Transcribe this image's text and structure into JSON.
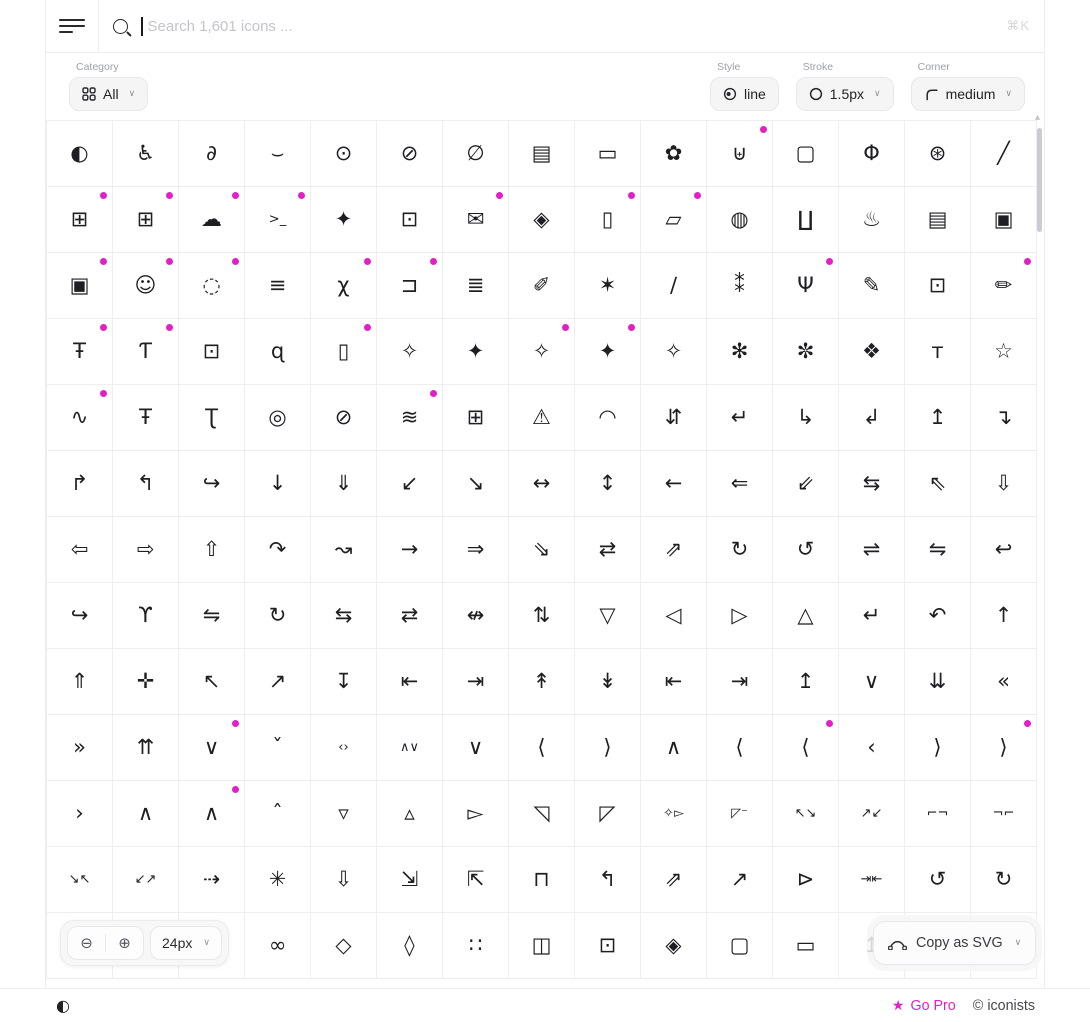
{
  "topbar": {
    "search_placeholder": "Search 1,601 icons ...",
    "shortcut_hint": "⌘K"
  },
  "filters": {
    "category_label": "Category",
    "category_value": "All",
    "style_label": "Style",
    "style_value": "line",
    "stroke_label": "Stroke",
    "stroke_value": "1.5px",
    "corner_label": "Corner",
    "corner_value": "medium"
  },
  "floating_controls": {
    "size_value": "24px",
    "copy_label": "Copy as SVG"
  },
  "footer": {
    "go_pro_label": "Go Pro",
    "copyright_symbol": "©",
    "brand": "iconists"
  },
  "icons": {
    "zoom_out": "⊖",
    "zoom_in": "⊕",
    "chevron_down": "∨",
    "theme_toggle": "◐",
    "star": "★",
    "scroll_up_arrow": "▴"
  },
  "colors": {
    "accent_magenta": "#E320C5",
    "ink": "#1F1F23"
  },
  "grid": {
    "columns": 15,
    "rows": 13,
    "cells": [
      {
        "n": "icon-contrast",
        "g": "◐"
      },
      {
        "n": "icon-accessibility",
        "g": "♿"
      },
      {
        "n": "icon-ear",
        "g": "∂"
      },
      {
        "n": "icon-eye-closed",
        "g": "⌣"
      },
      {
        "n": "icon-eye",
        "g": "⊙"
      },
      {
        "n": "icon-eye-off",
        "g": "⊘"
      },
      {
        "n": "icon-eye-off-alt",
        "g": "∅"
      },
      {
        "n": "icon-photo-card",
        "g": "▤"
      },
      {
        "n": "icon-captions",
        "g": "▭"
      },
      {
        "n": "icon-flower",
        "g": "✿"
      },
      {
        "n": "icon-bag-add",
        "g": "⊎",
        "d": 1
      },
      {
        "n": "icon-tv-sparkle",
        "g": "▢"
      },
      {
        "n": "icon-brain",
        "g": "Φ"
      },
      {
        "n": "icon-brain-sparkle",
        "g": "⊛"
      },
      {
        "n": "icon-broom-sparkle",
        "g": "╱"
      },
      {
        "n": "icon-chat-add",
        "g": "⊞",
        "d": 1
      },
      {
        "n": "icon-clipboard-add",
        "g": "⊞",
        "d": 1
      },
      {
        "n": "icon-cloud-add",
        "g": "☁",
        "d": 1
      },
      {
        "n": "icon-terminal-add",
        "g": ">_",
        "d": 1
      },
      {
        "n": "icon-cursor-sparkle",
        "g": "✦"
      },
      {
        "n": "icon-robot",
        "g": "⊡"
      },
      {
        "n": "icon-mail-add",
        "g": "✉",
        "d": 1
      },
      {
        "n": "icon-eye-shield",
        "g": "◈"
      },
      {
        "n": "icon-file-sparkle",
        "g": "▯",
        "d": 1
      },
      {
        "n": "icon-folder-sparkle",
        "g": "▱",
        "d": 1
      },
      {
        "n": "icon-crystal-ball",
        "g": "◍"
      },
      {
        "n": "icon-magic-hat",
        "g": "∐"
      },
      {
        "n": "icon-cooking-pot",
        "g": "♨"
      },
      {
        "n": "icon-id-card-sparkle",
        "g": "▤"
      },
      {
        "n": "icon-image-sparkle",
        "g": "▣"
      },
      {
        "n": "icon-image-add",
        "g": "▣",
        "d": 1
      },
      {
        "n": "icon-head-sparkle",
        "g": "☺",
        "d": 1
      },
      {
        "n": "icon-focus-sparkle",
        "g": "◌",
        "d": 1
      },
      {
        "n": "icon-list-sparkle",
        "g": "≡"
      },
      {
        "n": "icon-translate-sparkle",
        "g": "χ",
        "d": 1
      },
      {
        "n": "icon-folder-export",
        "g": "⊐",
        "d": 1
      },
      {
        "n": "icon-book-sparkle",
        "g": "≣"
      },
      {
        "n": "icon-pen-sparkle",
        "g": "✐"
      },
      {
        "n": "icon-wand-star",
        "g": "✶"
      },
      {
        "n": "icon-magic-wand",
        "g": "∕"
      },
      {
        "n": "icon-sparkler",
        "g": "⁑"
      },
      {
        "n": "icon-mic-sparkle",
        "g": "Ψ",
        "d": 1
      },
      {
        "n": "icon-brush-sparkle",
        "g": "✎"
      },
      {
        "n": "icon-sparkle-box",
        "g": "⊡"
      },
      {
        "n": "icon-pencil-sparkle",
        "g": "✏",
        "d": 1
      },
      {
        "n": "icon-text-image",
        "g": "Ŧ",
        "d": 1
      },
      {
        "n": "icon-text-video",
        "g": "Ƭ",
        "d": 1
      },
      {
        "n": "icon-robot-face",
        "g": "⊡"
      },
      {
        "n": "icon-search-sparkle",
        "g": "ɋ"
      },
      {
        "n": "icon-file-add",
        "g": "▯",
        "d": 1
      },
      {
        "n": "icon-sparkle",
        "g": "✧"
      },
      {
        "n": "icon-sparkle-solid",
        "g": "✦"
      },
      {
        "n": "icon-sparkle-alt",
        "g": "✧",
        "d": 1
      },
      {
        "n": "icon-sparkle-bold",
        "g": "✦",
        "d": 1
      },
      {
        "n": "icon-sparkle-plus",
        "g": "✧"
      },
      {
        "n": "icon-sparkles-trio",
        "g": "✻"
      },
      {
        "n": "icon-sparkles-burst",
        "g": "✼"
      },
      {
        "n": "icon-sparkles-double",
        "g": "❖"
      },
      {
        "n": "icon-voice-text",
        "g": "ᴛ"
      },
      {
        "n": "icon-star-sparkle",
        "g": "☆"
      },
      {
        "n": "icon-voice-sync",
        "g": "∿",
        "d": 1
      },
      {
        "n": "icon-text-image-sparkle",
        "g": "Ŧ"
      },
      {
        "n": "icon-text-to-speech",
        "g": "Ʈ"
      },
      {
        "n": "icon-eye-rings",
        "g": "◎"
      },
      {
        "n": "icon-globe-off",
        "g": "⊘"
      },
      {
        "n": "icon-equalizer-add",
        "g": "≋",
        "d": 1
      },
      {
        "n": "icon-window-sparkle",
        "g": "⊞"
      },
      {
        "n": "icon-warning-sparkle",
        "g": "⚠"
      },
      {
        "n": "icon-loader-sparkle",
        "g": "◠"
      },
      {
        "n": "icon-arrows-up-down",
        "g": "⇵"
      },
      {
        "n": "icon-arrow-return",
        "g": "↵"
      },
      {
        "n": "icon-arrow-branch-right",
        "g": "↳"
      },
      {
        "n": "icon-arrow-corner-down",
        "g": "↲"
      },
      {
        "n": "icon-arrow-corner-up",
        "g": "↥"
      },
      {
        "n": "icon-arrow-bend-down",
        "g": "↴"
      },
      {
        "n": "icon-arrow-turn-up",
        "g": "↱"
      },
      {
        "n": "icon-arrow-turn-left",
        "g": "↰"
      },
      {
        "n": "icon-arrow-turn-right",
        "g": "↪"
      },
      {
        "n": "icon-arrow-down",
        "g": "↓"
      },
      {
        "n": "icon-arrow-down-circle",
        "g": "⇓"
      },
      {
        "n": "icon-arrow-down-left",
        "g": "↙"
      },
      {
        "n": "icon-arrow-down-right",
        "g": "↘"
      },
      {
        "n": "icon-arrow-left-right",
        "g": "↔"
      },
      {
        "n": "icon-arrow-up-down",
        "g": "↕"
      },
      {
        "n": "icon-arrow-left",
        "g": "←"
      },
      {
        "n": "icon-arrow-left-circle",
        "g": "⇐"
      },
      {
        "n": "icon-arrow-down-left-circle",
        "g": "⇙"
      },
      {
        "n": "icon-arrows-swap",
        "g": "⇆"
      },
      {
        "n": "icon-arrow-up-left-circle",
        "g": "⇖"
      },
      {
        "n": "icon-arrow-down-outline",
        "g": "⇩"
      },
      {
        "n": "icon-arrow-left-outline",
        "g": "⇦"
      },
      {
        "n": "icon-arrow-right-outline",
        "g": "⇨"
      },
      {
        "n": "icon-arrow-up-outline",
        "g": "⇧"
      },
      {
        "n": "icon-u-turn-right",
        "g": "↷"
      },
      {
        "n": "icon-redo-step",
        "g": "↝"
      },
      {
        "n": "icon-arrow-right",
        "g": "→"
      },
      {
        "n": "icon-arrow-right-circle",
        "g": "⇒"
      },
      {
        "n": "icon-arrow-down-right-circle",
        "g": "⇘"
      },
      {
        "n": "icon-transfer-arrows",
        "g": "⇄"
      },
      {
        "n": "icon-arrow-up-right-circle",
        "g": "⇗"
      },
      {
        "n": "icon-rotate-cw",
        "g": "↻"
      },
      {
        "n": "icon-rotate-ccw",
        "g": "↺"
      },
      {
        "n": "icon-sync",
        "g": "⇌"
      },
      {
        "n": "icon-sync-alt",
        "g": "⇋"
      },
      {
        "n": "icon-reply",
        "g": "↩"
      },
      {
        "n": "icon-share-forward",
        "g": "↪"
      },
      {
        "n": "icon-arrows-split",
        "g": "ϒ"
      },
      {
        "n": "icon-repeat-return",
        "g": "⇋"
      },
      {
        "n": "icon-rotate-cycle",
        "g": "↻"
      },
      {
        "n": "icon-loop-arrows",
        "g": "⇆"
      },
      {
        "n": "icon-repeat",
        "g": "⇄"
      },
      {
        "n": "icon-shuffle-off",
        "g": "↮"
      },
      {
        "n": "icon-sort-vertical",
        "g": "⇅"
      },
      {
        "n": "icon-triangle-down",
        "g": "▽"
      },
      {
        "n": "icon-triangle-left",
        "g": "◁"
      },
      {
        "n": "icon-triangle-right",
        "g": "▷"
      },
      {
        "n": "icon-triangle-up",
        "g": "△"
      },
      {
        "n": "icon-return-key",
        "g": "↵"
      },
      {
        "n": "icon-undo-turn",
        "g": "↶"
      },
      {
        "n": "icon-arrow-up",
        "g": "↑"
      },
      {
        "n": "icon-arrow-up-circle",
        "g": "⇑"
      },
      {
        "n": "icon-move",
        "g": "✛"
      },
      {
        "n": "icon-arrow-up-left",
        "g": "↖"
      },
      {
        "n": "icon-arrow-up-right",
        "g": "↗"
      },
      {
        "n": "icon-arrow-to-bottom",
        "g": "↧"
      },
      {
        "n": "icon-arrow-to-line-left",
        "g": "⇤"
      },
      {
        "n": "icon-arrow-to-line-right",
        "g": "⇥"
      },
      {
        "n": "icon-arrow-from-line-up",
        "g": "↟"
      },
      {
        "n": "icon-arrow-down-underline",
        "g": "↡"
      },
      {
        "n": "icon-arrow-bar-left",
        "g": "⇤"
      },
      {
        "n": "icon-arrow-bar-right",
        "g": "⇥"
      },
      {
        "n": "icon-arrow-bar-up",
        "g": "↥"
      },
      {
        "n": "icon-chevron-down",
        "g": "∨"
      },
      {
        "n": "icon-chevrons-down",
        "g": "⇊"
      },
      {
        "n": "icon-chevrons-left",
        "g": "«"
      },
      {
        "n": "icon-chevrons-right",
        "g": "»"
      },
      {
        "n": "icon-chevrons-up",
        "g": "⇈"
      },
      {
        "n": "icon-chevron-down-alt",
        "g": "∨",
        "d": 1
      },
      {
        "n": "icon-chevron-down-small",
        "g": "ˇ"
      },
      {
        "n": "icon-code-chevrons",
        "g": "‹›"
      },
      {
        "n": "icon-chevron-expand",
        "g": "∧∨"
      },
      {
        "n": "icon-chevron-down-wide",
        "g": "∨"
      },
      {
        "n": "icon-angle-left",
        "g": "⟨"
      },
      {
        "n": "icon-angle-right",
        "g": "⟩"
      },
      {
        "n": "icon-chevron-up",
        "g": "∧"
      },
      {
        "n": "icon-chevron-left",
        "g": "⟨"
      },
      {
        "n": "icon-chevron-left-alt",
        "g": "⟨",
        "d": 1
      },
      {
        "n": "icon-chevron-left-small",
        "g": "‹"
      },
      {
        "n": "icon-chevron-right",
        "g": "⟩"
      },
      {
        "n": "icon-chevron-right-alt",
        "g": "⟩",
        "d": 1
      },
      {
        "n": "icon-chevron-right-small",
        "g": "›"
      },
      {
        "n": "icon-chevron-up-wide",
        "g": "∧"
      },
      {
        "n": "icon-chevron-up-alt",
        "g": "∧",
        "d": 1
      },
      {
        "n": "icon-chevron-up-small",
        "g": "ˆ"
      },
      {
        "n": "icon-caret-down",
        "g": "▿"
      },
      {
        "n": "icon-caret-up",
        "g": "▵"
      },
      {
        "n": "icon-cursor-pointer",
        "g": "▻"
      },
      {
        "n": "icon-cursor-arrow",
        "g": "◹"
      },
      {
        "n": "icon-cursor-arrow-alt",
        "g": "◸"
      },
      {
        "n": "icon-cursor-click",
        "g": "✧▻"
      },
      {
        "n": "icon-cursor-minus",
        "g": "◸⁻"
      },
      {
        "n": "icon-expand-diagonal",
        "g": "↖↘"
      },
      {
        "n": "icon-expand-diagonal-alt",
        "g": "↗↙"
      },
      {
        "n": "icon-expand-corners",
        "g": "⌐¬"
      },
      {
        "n": "icon-expand-corners-alt",
        "g": "¬⌐"
      },
      {
        "n": "icon-collapse-diagonal",
        "g": "↘↖"
      },
      {
        "n": "icon-collapse-diagonal-alt",
        "g": "↙↗"
      },
      {
        "n": "icon-arrow-dashed-circle",
        "g": "⇢"
      },
      {
        "n": "icon-cursor-burst",
        "g": "✳"
      },
      {
        "n": "icon-download-tray",
        "g": "⇩"
      },
      {
        "n": "icon-arrow-se-box",
        "g": "⇲"
      },
      {
        "n": "icon-arrow-nw-box",
        "g": "⇱"
      },
      {
        "n": "icon-window-snap",
        "g": "⊓"
      },
      {
        "n": "icon-share-box",
        "g": "↰"
      },
      {
        "n": "icon-external-link",
        "g": "⇗"
      },
      {
        "n": "icon-external-link-alt",
        "g": "↗"
      },
      {
        "n": "icon-forward-box",
        "g": "⊳"
      },
      {
        "n": "icon-align-center-arrows",
        "g": "⇥⇤"
      },
      {
        "n": "icon-undo",
        "g": "↺"
      },
      {
        "n": "icon-redo",
        "g": "↻"
      },
      {
        "n": "icon-obscured",
        "g": ""
      },
      {
        "n": "icon-obscured",
        "g": ""
      },
      {
        "n": "icon-obscured",
        "g": ""
      },
      {
        "n": "icon-vr-headset",
        "g": "∞"
      },
      {
        "n": "icon-cube",
        "g": "◇"
      },
      {
        "n": "icon-cube-outline",
        "g": "◊"
      },
      {
        "n": "icon-move-3d",
        "g": "∷"
      },
      {
        "n": "icon-panorama",
        "g": "◫"
      },
      {
        "n": "icon-scan-cube",
        "g": "⊡"
      },
      {
        "n": "icon-cube-dots",
        "g": "◈"
      },
      {
        "n": "icon-capsule",
        "g": "▢"
      },
      {
        "n": "icon-curved-rect",
        "g": "▭"
      },
      {
        "n": "icon-pin-up",
        "g": "↥"
      },
      {
        "n": "icon-obscured",
        "g": ""
      },
      {
        "n": "icon-obscured",
        "g": ""
      }
    ]
  }
}
